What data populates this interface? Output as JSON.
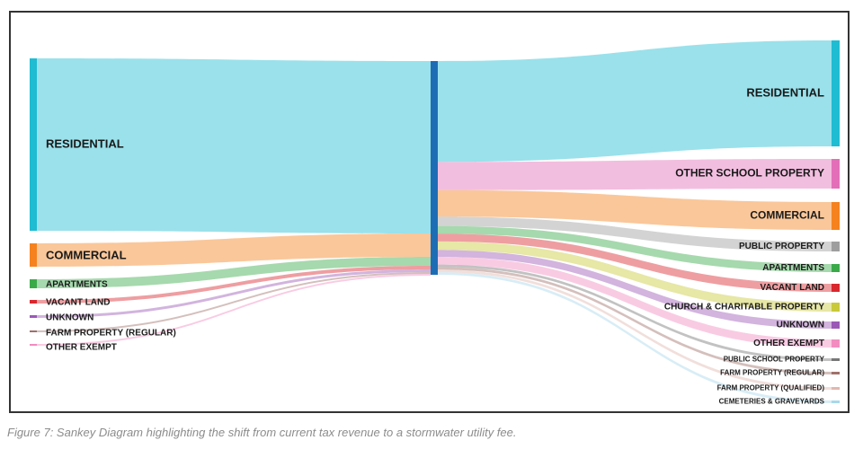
{
  "caption": "Figure 7: Sankey Diagram highlighting the shift from current tax revenue to a stormwater utility fee.",
  "diagram": {
    "type": "sankey",
    "sources": [
      {
        "label": "RESIDENTIAL",
        "color": "#1fbcd2"
      },
      {
        "label": "COMMERCIAL",
        "color": "#f5821f"
      },
      {
        "label": "APARTMENTS",
        "color": "#3aaa49"
      },
      {
        "label": "VACANT LAND",
        "color": "#d9272e"
      },
      {
        "label": "UNKNOWN",
        "color": "#9b59b6"
      },
      {
        "label": "FARM PROPERTY (REGULAR)",
        "color": "#a0706a"
      },
      {
        "label": "OTHER EXEMPT",
        "color": "#f28cc0"
      }
    ],
    "middle_node_color": "#1d6db5",
    "targets": [
      {
        "label": "RESIDENTIAL",
        "color": "#1fbcd2"
      },
      {
        "label": "OTHER SCHOOL PROPERTY",
        "color": "#e36fb8"
      },
      {
        "label": "COMMERCIAL",
        "color": "#f5821f"
      },
      {
        "label": "PUBLIC PROPERTY",
        "color": "#9e9e9e"
      },
      {
        "label": "APARTMENTS",
        "color": "#3aaa49"
      },
      {
        "label": "VACANT LAND",
        "color": "#d9272e"
      },
      {
        "label": "CHURCH & CHARITABLE PROPERTY",
        "color": "#c9c93a"
      },
      {
        "label": "UNKNOWN",
        "color": "#9b59b6"
      },
      {
        "label": "OTHER EXEMPT",
        "color": "#f28cc0"
      },
      {
        "label": "PUBLIC SCHOOL PROPERTY",
        "color": "#777777"
      },
      {
        "label": "FARM PROPERTY (REGULAR)",
        "color": "#a0706a"
      },
      {
        "label": "FARM PROPERTY (QUALIFIED)",
        "color": "#e0b8b0"
      },
      {
        "label": "CEMETERIES & GRAVEYARDS",
        "color": "#a8d8ea"
      }
    ]
  }
}
